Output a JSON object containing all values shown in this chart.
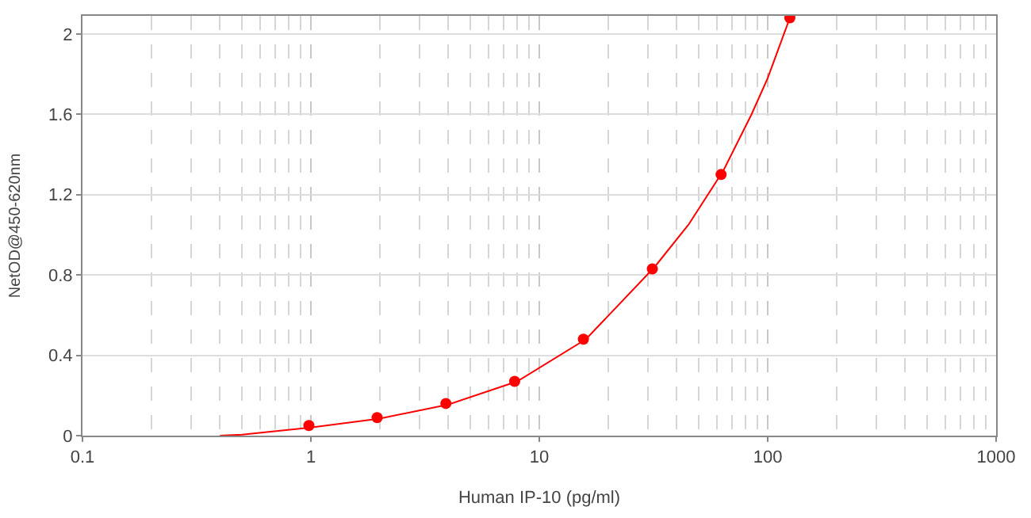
{
  "chart_data": {
    "type": "scatter",
    "xlabel": "Human IP-10 (pg/ml)",
    "ylabel": "NetOD@450-620nm",
    "log": "x",
    "xlim": [
      0.1,
      1000
    ],
    "xticks": [
      0.1,
      1,
      10,
      100,
      1000
    ],
    "ylim": [
      0,
      2.09
    ],
    "yticks": [
      0,
      0.4,
      0.8,
      1.2,
      1.6,
      2
    ],
    "grid": true,
    "series": [
      {
        "type": "line",
        "color": "#ff0000",
        "marker": "none",
        "x": [
          0.4,
          0.5,
          1,
          2,
          4,
          8,
          16,
          32,
          45,
          64,
          85,
          100,
          125
        ],
        "values": [
          0,
          0.005,
          0.04,
          0.085,
          0.155,
          0.27,
          0.48,
          0.84,
          1.05,
          1.32,
          1.6,
          1.78,
          2.08
        ]
      },
      {
        "color": "#ff0000",
        "marker": "circle",
        "x": [
          0.98,
          1.95,
          3.9,
          7.8,
          15.6,
          31.25,
          62.5,
          125
        ],
        "values": [
          0.05,
          0.09,
          0.16,
          0.27,
          0.48,
          0.83,
          1.3,
          2.08
        ]
      }
    ]
  }
}
